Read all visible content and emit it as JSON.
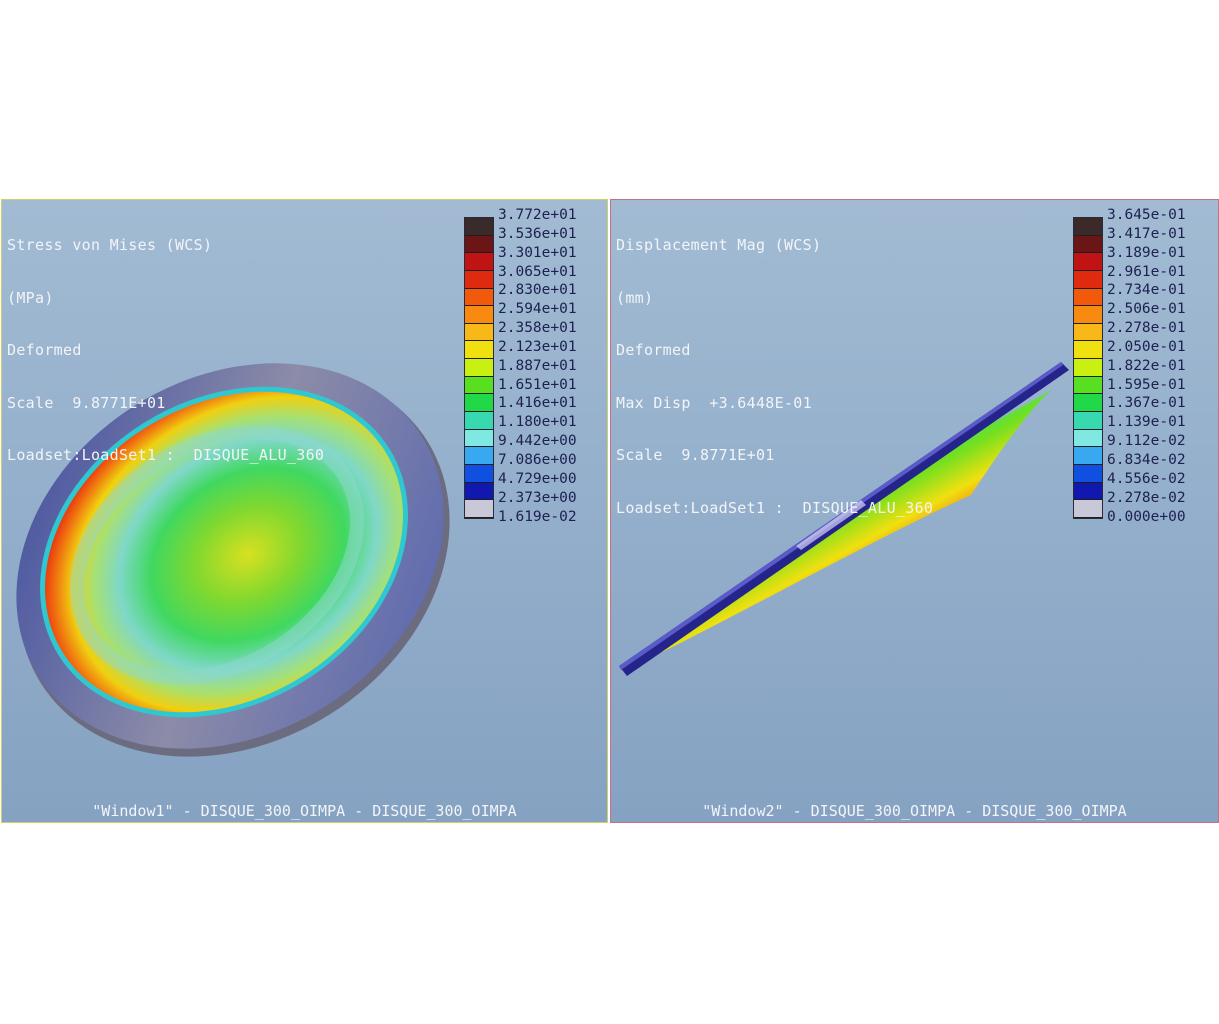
{
  "windows": [
    {
      "id": "Window1",
      "info_lines": [
        "Stress von Mises (WCS)",
        "(MPa)",
        "Deformed",
        "Scale  9.8771E+01",
        "Loadset:LoadSet1 :  DISQUE_ALU_360"
      ],
      "legend_values": [
        "3.772e+01",
        "3.536e+01",
        "3.301e+01",
        "3.065e+01",
        "2.830e+01",
        "2.594e+01",
        "2.358e+01",
        "2.123e+01",
        "1.887e+01",
        "1.651e+01",
        "1.416e+01",
        "1.180e+01",
        "9.442e+00",
        "7.086e+00",
        "4.729e+00",
        "2.373e+00",
        "1.619e-02"
      ],
      "footer": "\"Window1\" - DISQUE_300_OIMPA - DISQUE_300_OIMPA"
    },
    {
      "id": "Window2",
      "info_lines": [
        "Displacement Mag (WCS)",
        "(mm)",
        "Deformed",
        "Max Disp  +3.6448E-01",
        "Scale  9.8771E+01",
        "Loadset:LoadSet1 :  DISQUE_ALU_360"
      ],
      "legend_values": [
        "3.645e-01",
        "3.417e-01",
        "3.189e-01",
        "2.961e-01",
        "2.734e-01",
        "2.506e-01",
        "2.278e-01",
        "2.050e-01",
        "1.822e-01",
        "1.595e-01",
        "1.367e-01",
        "1.139e-01",
        "9.112e-02",
        "6.834e-02",
        "4.556e-02",
        "2.278e-02",
        "0.000e+00"
      ],
      "footer": "\"Window2\" - DISQUE_300_OIMPA - DISQUE_300_OIMPA"
    }
  ],
  "legend_colors": [
    "#3a2a2a",
    "#6a1616",
    "#c01414",
    "#e02a10",
    "#f05a0a",
    "#f88a10",
    "#f8b818",
    "#f0e010",
    "#c8f010",
    "#58e020",
    "#20d848",
    "#38d8b0",
    "#7fe8e0",
    "#38a8f0",
    "#1050e0",
    "#1018b0",
    "#c8c8d8"
  ]
}
